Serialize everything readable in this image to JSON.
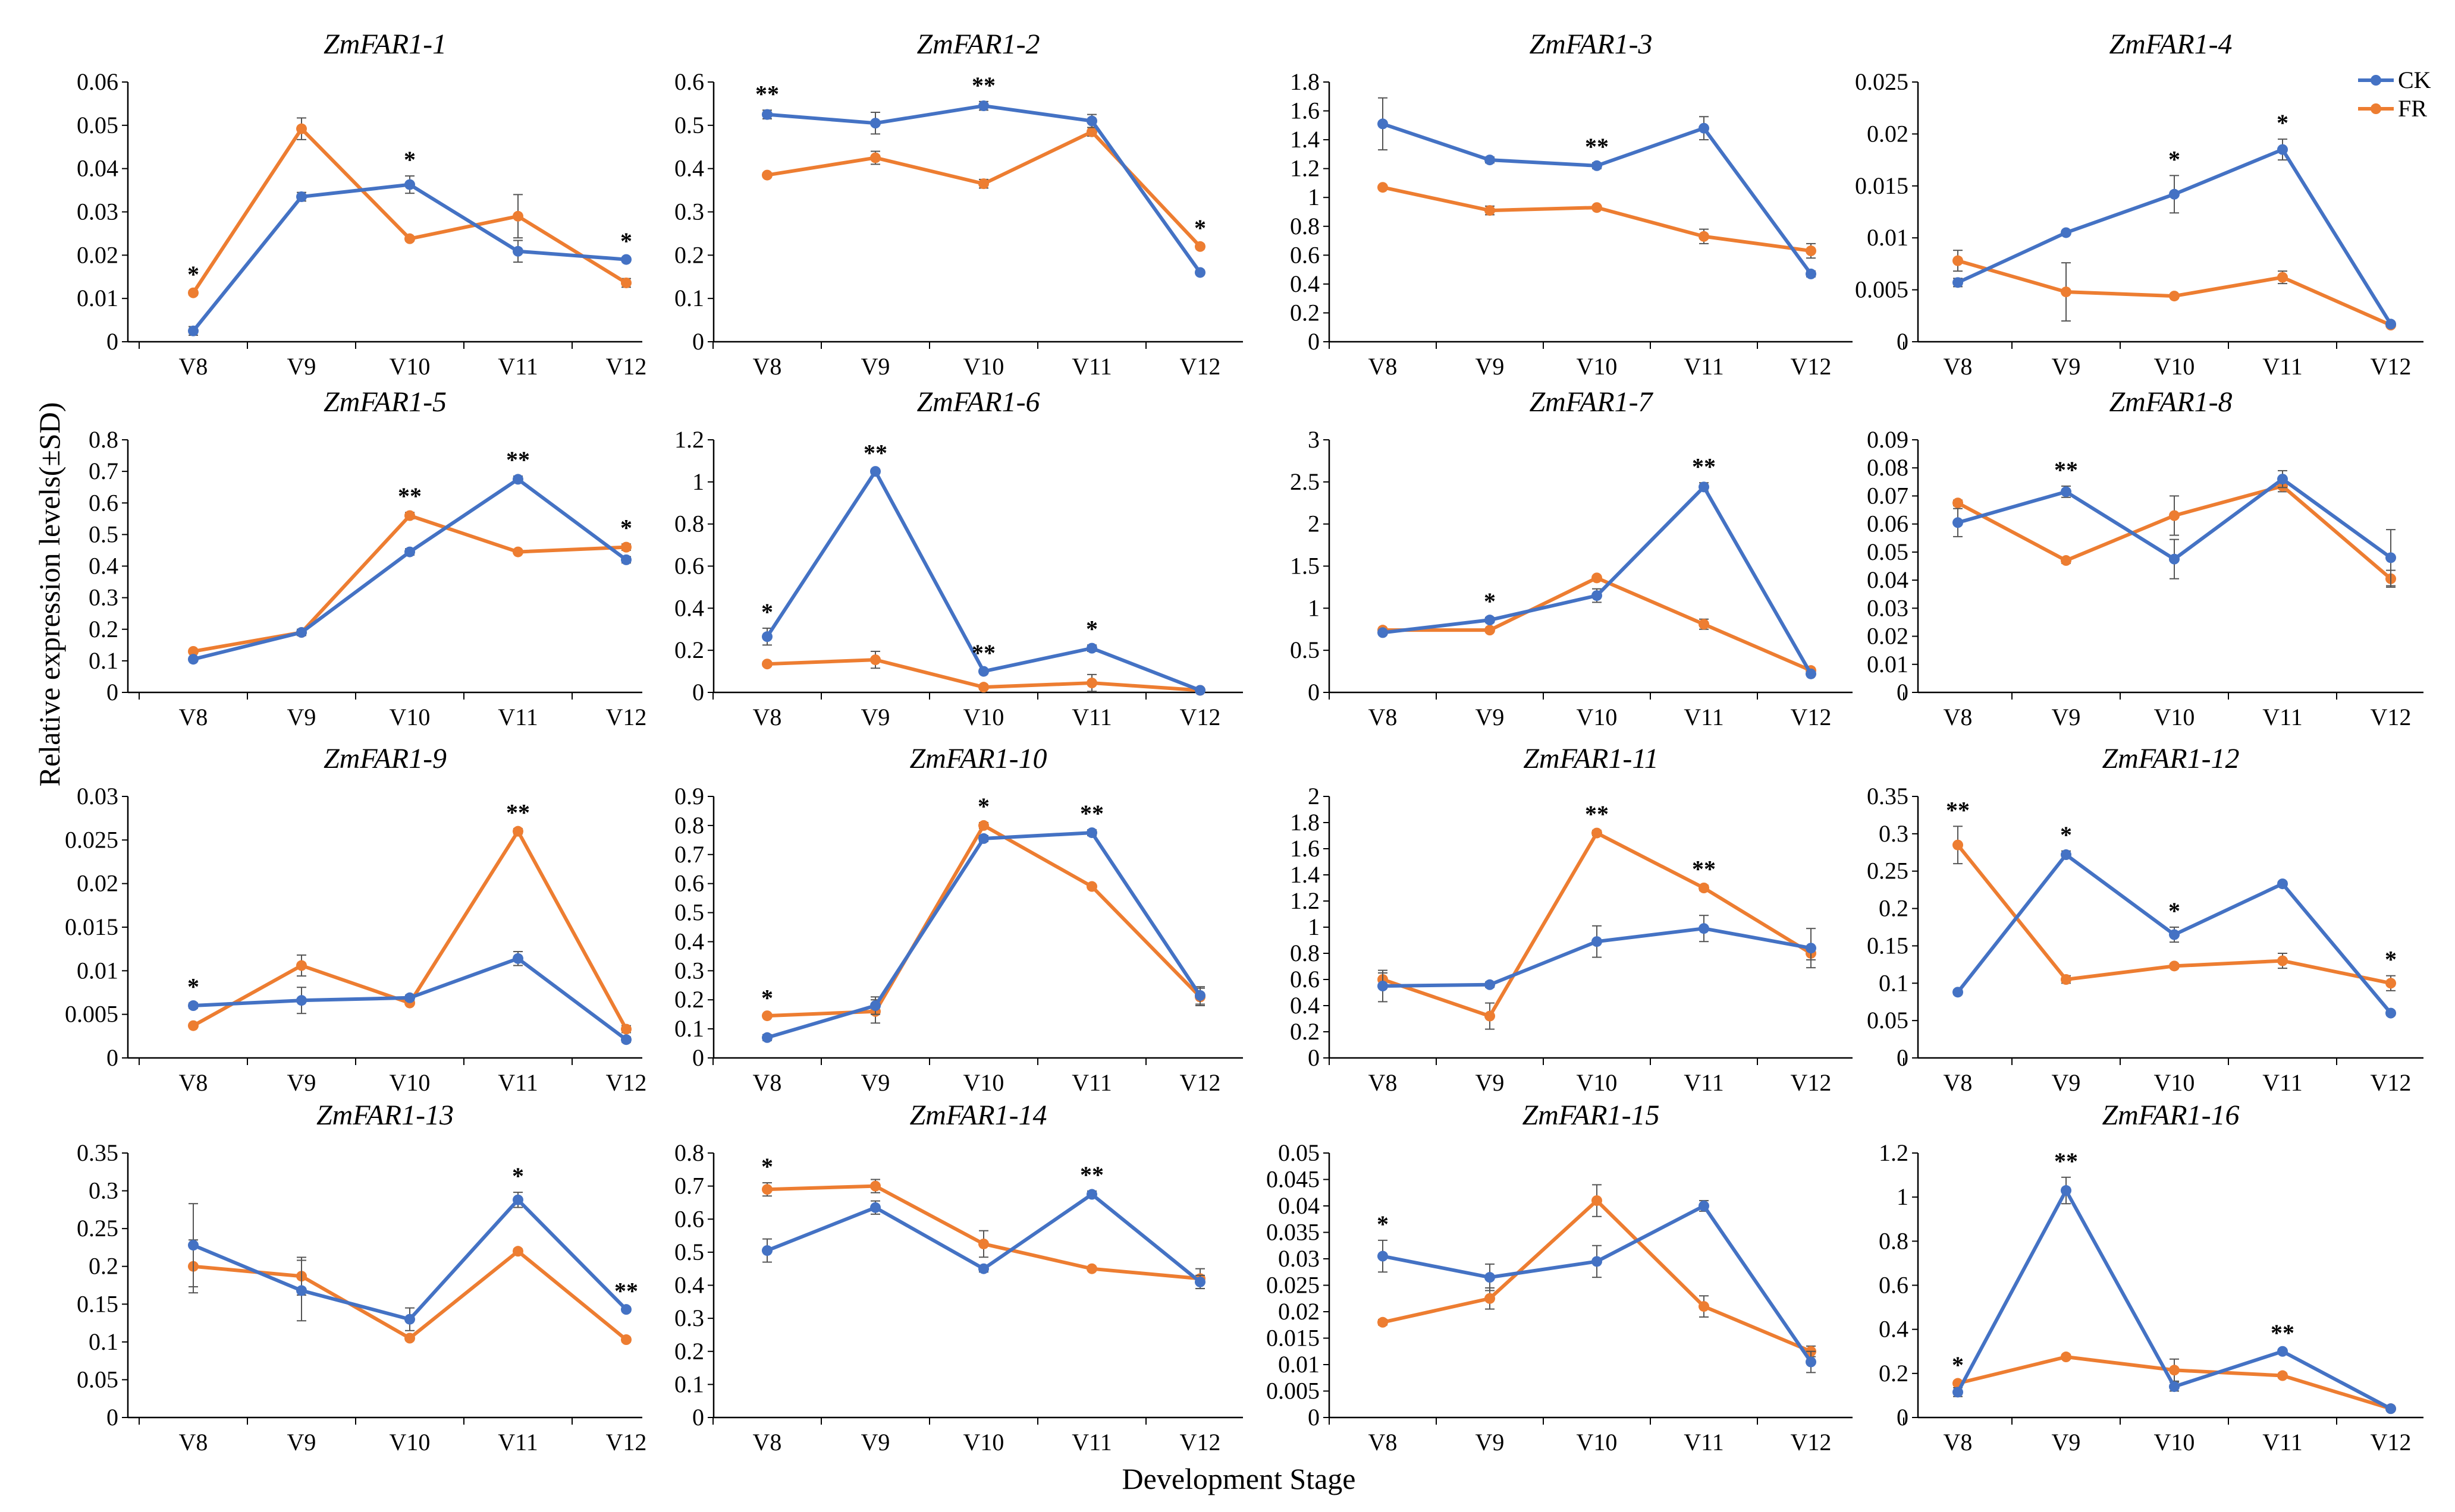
{
  "figure": {
    "ylabel": "Relative expression levels(±SD)",
    "xlabel": "Development Stage",
    "legend": [
      {
        "name": "CK",
        "color": "#4472C4"
      },
      {
        "name": "FR",
        "color": "#ED7D31"
      }
    ],
    "legend_position": "top-right"
  },
  "chart_data": [
    {
      "type": "line",
      "title": "ZmFAR1-1",
      "categories": [
        "V8",
        "V9",
        "V10",
        "V11",
        "V12"
      ],
      "yticks": [
        "0",
        "0.01",
        "0.02",
        "0.03",
        "0.04",
        "0.05",
        "0.06"
      ],
      "ylim": [
        0,
        0.06
      ],
      "series": [
        {
          "name": "CK",
          "values": [
            0.0025,
            0.0335,
            0.0363,
            0.0209,
            0.019
          ],
          "err": [
            0.001,
            0.001,
            0.002,
            0.0025,
            0.0005
          ]
        },
        {
          "name": "FR",
          "values": [
            0.0113,
            0.0492,
            0.0238,
            0.029,
            0.0136
          ],
          "err": [
            0.0005,
            0.0025,
            0.0005,
            0.005,
            0.001
          ]
        }
      ],
      "annotations": [
        {
          "index": 0,
          "label": "*"
        },
        {
          "index": 2,
          "label": "*"
        },
        {
          "index": 4,
          "label": "*"
        }
      ]
    },
    {
      "type": "line",
      "title": "ZmFAR1-2",
      "categories": [
        "V8",
        "V9",
        "V10",
        "V11",
        "V12"
      ],
      "yticks": [
        "0",
        "0.1",
        "0.2",
        "0.3",
        "0.4",
        "0.5",
        "0.6"
      ],
      "ylim": [
        0,
        0.6
      ],
      "series": [
        {
          "name": "CK",
          "values": [
            0.525,
            0.505,
            0.545,
            0.51,
            0.16
          ],
          "err": [
            0.01,
            0.025,
            0.01,
            0.015,
            0.005
          ]
        },
        {
          "name": "FR",
          "values": [
            0.385,
            0.425,
            0.365,
            0.485,
            0.22
          ],
          "err": [
            0.005,
            0.015,
            0.01,
            0.01,
            0.005
          ]
        }
      ],
      "annotations": [
        {
          "index": 0,
          "label": "**"
        },
        {
          "index": 2,
          "label": "**"
        },
        {
          "index": 4,
          "label": "*"
        }
      ]
    },
    {
      "type": "line",
      "title": "ZmFAR1-3",
      "categories": [
        "V8",
        "V9",
        "V10",
        "V11",
        "V12"
      ],
      "yticks": [
        "0",
        "0.2",
        "0.4",
        "0.6",
        "0.8",
        "1",
        "1.2",
        "1.4",
        "1.6",
        "1.8"
      ],
      "ylim": [
        0,
        1.8
      ],
      "series": [
        {
          "name": "CK",
          "values": [
            1.51,
            1.26,
            1.22,
            1.48,
            0.47
          ],
          "err": [
            0.18,
            0.02,
            0.02,
            0.08,
            0.02
          ]
        },
        {
          "name": "FR",
          "values": [
            1.07,
            0.91,
            0.93,
            0.73,
            0.63
          ],
          "err": [
            0.01,
            0.03,
            0.01,
            0.05,
            0.05
          ]
        }
      ],
      "annotations": [
        {
          "index": 2,
          "label": "**"
        }
      ]
    },
    {
      "type": "line",
      "title": "ZmFAR1-4",
      "categories": [
        "V8",
        "V9",
        "V10",
        "V11",
        "V12"
      ],
      "yticks": [
        "0",
        "0.005",
        "0.01",
        "0.015",
        "0.02",
        "0.025"
      ],
      "ylim": [
        0,
        0.025
      ],
      "series": [
        {
          "name": "CK",
          "values": [
            0.0057,
            0.0105,
            0.0142,
            0.0185,
            0.0017
          ],
          "err": [
            0.0004,
            0.0002,
            0.0018,
            0.001,
            0.0002
          ]
        },
        {
          "name": "FR",
          "values": [
            0.0078,
            0.0048,
            0.0044,
            0.0062,
            0.0016
          ],
          "err": [
            0.001,
            0.0028,
            0.0002,
            0.0006,
            0.0001
          ]
        }
      ],
      "annotations": [
        {
          "index": 2,
          "label": "*"
        },
        {
          "index": 3,
          "label": "*"
        }
      ]
    },
    {
      "type": "line",
      "title": "ZmFAR1-5",
      "categories": [
        "V8",
        "V9",
        "V10",
        "V11",
        "V12"
      ],
      "yticks": [
        "0",
        "0.1",
        "0.2",
        "0.3",
        "0.4",
        "0.5",
        "0.6",
        "0.7",
        "0.8"
      ],
      "ylim": [
        0,
        0.8
      ],
      "series": [
        {
          "name": "CK",
          "values": [
            0.105,
            0.19,
            0.445,
            0.675,
            0.42
          ],
          "err": [
            0.005,
            0.005,
            0.01,
            0.01,
            0.01
          ]
        },
        {
          "name": "FR",
          "values": [
            0.13,
            0.19,
            0.56,
            0.445,
            0.46
          ],
          "err": [
            0.005,
            0.01,
            0.01,
            0.005,
            0.01
          ]
        }
      ],
      "annotations": [
        {
          "index": 2,
          "label": "**"
        },
        {
          "index": 3,
          "label": "**"
        },
        {
          "index": 4,
          "label": "*"
        }
      ]
    },
    {
      "type": "line",
      "title": "ZmFAR1-6",
      "categories": [
        "V8",
        "V9",
        "V10",
        "V11",
        "V12"
      ],
      "yticks": [
        "0",
        "0.2",
        "0.4",
        "0.6",
        "0.8",
        "1",
        "1.2"
      ],
      "ylim": [
        0,
        1.2
      ],
      "series": [
        {
          "name": "CK",
          "values": [
            0.265,
            1.05,
            0.1,
            0.21,
            0.01
          ],
          "err": [
            0.04,
            0.01,
            0.01,
            0.015,
            0.005
          ]
        },
        {
          "name": "FR",
          "values": [
            0.135,
            0.155,
            0.025,
            0.045,
            0.01
          ],
          "err": [
            0.01,
            0.04,
            0.01,
            0.04,
            0.005
          ]
        }
      ],
      "annotations": [
        {
          "index": 0,
          "label": "*"
        },
        {
          "index": 1,
          "label": "**"
        },
        {
          "index": 2,
          "label": "**"
        },
        {
          "index": 3,
          "label": "*"
        }
      ]
    },
    {
      "type": "line",
      "title": "ZmFAR1-7",
      "categories": [
        "V8",
        "V9",
        "V10",
        "V11",
        "V12"
      ],
      "yticks": [
        "0",
        "0.5",
        "1",
        "1.5",
        "2",
        "2.5",
        "3"
      ],
      "ylim": [
        0,
        3
      ],
      "series": [
        {
          "name": "CK",
          "values": [
            0.71,
            0.86,
            1.15,
            2.44,
            0.22
          ],
          "err": [
            0.02,
            0.03,
            0.08,
            0.05,
            0.01
          ]
        },
        {
          "name": "FR",
          "values": [
            0.74,
            0.74,
            1.36,
            0.81,
            0.26
          ],
          "err": [
            0.02,
            0.02,
            0.02,
            0.06,
            0.01
          ]
        }
      ],
      "annotations": [
        {
          "index": 1,
          "label": "*"
        },
        {
          "index": 3,
          "label": "**"
        }
      ]
    },
    {
      "type": "line",
      "title": "ZmFAR1-8",
      "categories": [
        "V8",
        "V9",
        "V10",
        "V11",
        "V12"
      ],
      "yticks": [
        "0",
        "0.01",
        "0.02",
        "0.03",
        "0.04",
        "0.05",
        "0.06",
        "0.07",
        "0.08",
        "0.09"
      ],
      "ylim": [
        0,
        0.09
      ],
      "series": [
        {
          "name": "CK",
          "values": [
            0.0605,
            0.0715,
            0.0475,
            0.076,
            0.048
          ],
          "err": [
            0.005,
            0.002,
            0.007,
            0.003,
            0.01
          ]
        },
        {
          "name": "FR",
          "values": [
            0.0675,
            0.047,
            0.063,
            0.0735,
            0.0405
          ],
          "err": [
            0.001,
            0.001,
            0.007,
            0.002,
            0.003
          ]
        }
      ],
      "annotations": [
        {
          "index": 1,
          "label": "**"
        }
      ]
    },
    {
      "type": "line",
      "title": "ZmFAR1-9",
      "categories": [
        "V8",
        "V9",
        "V10",
        "V11",
        "V12"
      ],
      "yticks": [
        "0",
        "0.005",
        "0.01",
        "0.015",
        "0.02",
        "0.025",
        "0.03"
      ],
      "ylim": [
        0,
        0.03
      ],
      "series": [
        {
          "name": "CK",
          "values": [
            0.006,
            0.0066,
            0.0069,
            0.0114,
            0.0021
          ],
          "err": [
            0.0003,
            0.0015,
            0.0003,
            0.0008,
            0.0003
          ]
        },
        {
          "name": "FR",
          "values": [
            0.0037,
            0.0106,
            0.0063,
            0.026,
            0.0033
          ],
          "err": [
            0.0002,
            0.0012,
            0.0002,
            0.0003,
            0.0004
          ]
        }
      ],
      "annotations": [
        {
          "index": 0,
          "label": "*"
        },
        {
          "index": 3,
          "label": "**"
        }
      ]
    },
    {
      "type": "line",
      "title": "ZmFAR1-10",
      "categories": [
        "V8",
        "V9",
        "V10",
        "V11",
        "V12"
      ],
      "yticks": [
        "0",
        "0.1",
        "0.2",
        "0.3",
        "0.4",
        "0.5",
        "0.6",
        "0.7",
        "0.8",
        "0.9"
      ],
      "ylim": [
        0,
        0.9
      ],
      "series": [
        {
          "name": "CK",
          "values": [
            0.07,
            0.18,
            0.755,
            0.775,
            0.215
          ],
          "err": [
            0.01,
            0.03,
            0.01,
            0.01,
            0.03
          ]
        },
        {
          "name": "FR",
          "values": [
            0.145,
            0.16,
            0.8,
            0.59,
            0.21
          ],
          "err": [
            0.005,
            0.04,
            0.01,
            0.005,
            0.03
          ]
        }
      ],
      "annotations": [
        {
          "index": 0,
          "label": "*"
        },
        {
          "index": 2,
          "label": "*"
        },
        {
          "index": 3,
          "label": "**"
        }
      ]
    },
    {
      "type": "line",
      "title": "ZmFAR1-11",
      "categories": [
        "V8",
        "V9",
        "V10",
        "V11",
        "V12"
      ],
      "yticks": [
        "0",
        "0.2",
        "0.4",
        "0.6",
        "0.8",
        "1",
        "1.2",
        "1.4",
        "1.6",
        "1.8",
        "2"
      ],
      "ylim": [
        0,
        2
      ],
      "series": [
        {
          "name": "CK",
          "values": [
            0.55,
            0.56,
            0.89,
            0.99,
            0.84
          ],
          "err": [
            0.12,
            0.02,
            0.12,
            0.1,
            0.15
          ]
        },
        {
          "name": "FR",
          "values": [
            0.6,
            0.32,
            1.72,
            1.3,
            0.8
          ],
          "err": [
            0.05,
            0.1,
            0.02,
            0.02,
            0.05
          ]
        }
      ],
      "annotations": [
        {
          "index": 2,
          "label": "**"
        },
        {
          "index": 3,
          "label": "**"
        }
      ]
    },
    {
      "type": "line",
      "title": "ZmFAR1-12",
      "categories": [
        "V8",
        "V9",
        "V10",
        "V11",
        "V12"
      ],
      "yticks": [
        "0",
        "0.05",
        "0.1",
        "0.15",
        "0.2",
        "0.25",
        "0.3",
        "0.35"
      ],
      "ylim": [
        0,
        0.35
      ],
      "series": [
        {
          "name": "CK",
          "values": [
            0.088,
            0.272,
            0.165,
            0.233,
            0.06
          ],
          "err": [
            0.003,
            0.005,
            0.01,
            0.003,
            0.003
          ]
        },
        {
          "name": "FR",
          "values": [
            0.285,
            0.105,
            0.123,
            0.13,
            0.1
          ],
          "err": [
            0.025,
            0.005,
            0.003,
            0.01,
            0.01
          ]
        }
      ],
      "annotations": [
        {
          "index": 0,
          "label": "**"
        },
        {
          "index": 1,
          "label": "*"
        },
        {
          "index": 2,
          "label": "*"
        },
        {
          "index": 4,
          "label": "*"
        }
      ]
    },
    {
      "type": "line",
      "title": "ZmFAR1-13",
      "categories": [
        "V8",
        "V9",
        "V10",
        "V11",
        "V12"
      ],
      "yticks": [
        "0",
        "0.05",
        "0.1",
        "0.15",
        "0.2",
        "0.25",
        "0.3",
        "0.35"
      ],
      "ylim": [
        0,
        0.35
      ],
      "series": [
        {
          "name": "CK",
          "values": [
            0.228,
            0.168,
            0.13,
            0.288,
            0.143
          ],
          "err": [
            0.055,
            0.04,
            0.015,
            0.01,
            0.003
          ]
        },
        {
          "name": "FR",
          "values": [
            0.2,
            0.187,
            0.105,
            0.22,
            0.103
          ],
          "err": [
            0.035,
            0.025,
            0.003,
            0.003,
            0.003
          ]
        }
      ],
      "annotations": [
        {
          "index": 3,
          "label": "*"
        },
        {
          "index": 4,
          "label": "**"
        }
      ]
    },
    {
      "type": "line",
      "title": "ZmFAR1-14",
      "categories": [
        "V8",
        "V9",
        "V10",
        "V11",
        "V12"
      ],
      "yticks": [
        "0",
        "0.1",
        "0.2",
        "0.3",
        "0.4",
        "0.5",
        "0.6",
        "0.7",
        "0.8"
      ],
      "ylim": [
        0,
        0.8
      ],
      "series": [
        {
          "name": "CK",
          "values": [
            0.505,
            0.635,
            0.45,
            0.675,
            0.41
          ],
          "err": [
            0.035,
            0.02,
            0.01,
            0.01,
            0.02
          ]
        },
        {
          "name": "FR",
          "values": [
            0.69,
            0.7,
            0.525,
            0.45,
            0.42
          ],
          "err": [
            0.02,
            0.02,
            0.04,
            0.005,
            0.03
          ]
        }
      ],
      "annotations": [
        {
          "index": 0,
          "label": "*"
        },
        {
          "index": 3,
          "label": "**"
        }
      ]
    },
    {
      "type": "line",
      "title": "ZmFAR1-15",
      "categories": [
        "V8",
        "V9",
        "V10",
        "V11",
        "V12"
      ],
      "yticks": [
        "0",
        "0.005",
        "0.01",
        "0.015",
        "0.02",
        "0.025",
        "0.03",
        "0.035",
        "0.04",
        "0.045",
        "0.05"
      ],
      "ylim": [
        0,
        0.05
      ],
      "series": [
        {
          "name": "CK",
          "values": [
            0.0305,
            0.0265,
            0.0295,
            0.04,
            0.0105
          ],
          "err": [
            0.003,
            0.0025,
            0.003,
            0.001,
            0.002
          ]
        },
        {
          "name": "FR",
          "values": [
            0.018,
            0.0225,
            0.041,
            0.021,
            0.0125
          ],
          "err": [
            0.0005,
            0.002,
            0.003,
            0.002,
            0.001
          ]
        }
      ],
      "annotations": [
        {
          "index": 0,
          "label": "*"
        }
      ]
    },
    {
      "type": "line",
      "title": "ZmFAR1-16",
      "categories": [
        "V8",
        "V9",
        "V10",
        "V11",
        "V12"
      ],
      "yticks": [
        "0",
        "0.2",
        "0.4",
        "0.6",
        "0.8",
        "1",
        "1.2"
      ],
      "ylim": [
        0,
        1.2
      ],
      "series": [
        {
          "name": "CK",
          "values": [
            0.115,
            1.03,
            0.14,
            0.3,
            0.04
          ],
          "err": [
            0.02,
            0.06,
            0.02,
            0.01,
            0.005
          ]
        },
        {
          "name": "FR",
          "values": [
            0.155,
            0.275,
            0.215,
            0.19,
            0.04
          ],
          "err": [
            0.01,
            0.01,
            0.05,
            0.01,
            0.005
          ]
        }
      ],
      "annotations": [
        {
          "index": 0,
          "label": "*"
        },
        {
          "index": 1,
          "label": "**"
        },
        {
          "index": 3,
          "label": "**"
        }
      ]
    }
  ]
}
